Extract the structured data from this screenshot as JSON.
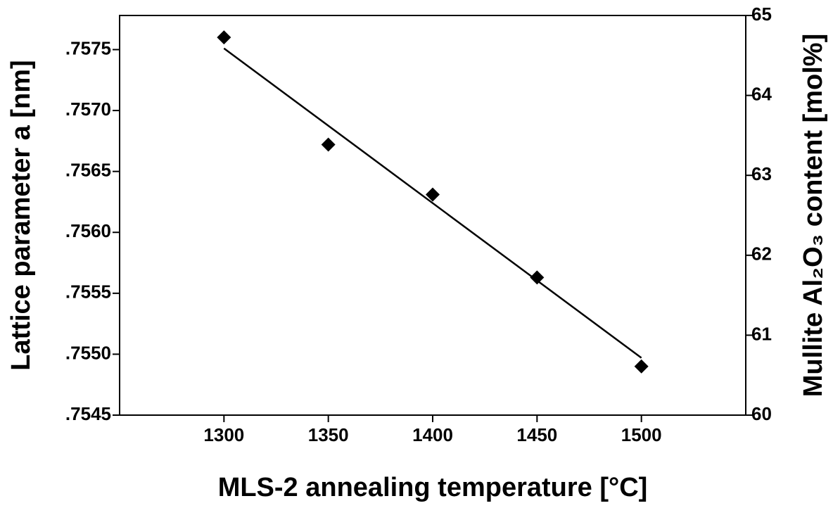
{
  "chart_data": {
    "type": "scatter",
    "x_label": "MLS-2 annealing temperature [°C]",
    "y_label": "Lattice parameter a [nm]",
    "y2_label": "Mullite Al₂O₃ content [mol%]",
    "x": [
      1300,
      1350,
      1400,
      1450,
      1500
    ],
    "values": [
      0.7576,
      0.75672,
      0.75631,
      0.75563,
      0.7549
    ],
    "color": "#000000",
    "fit": {
      "x": [
        1300,
        1500
      ],
      "values": [
        0.75751,
        0.75497
      ],
      "color": "#000000"
    },
    "xlim": [
      1250,
      1550
    ],
    "xticks": [
      1300,
      1350,
      1400,
      1450,
      1500
    ],
    "ylim": [
      0.7545,
      0.75778
    ],
    "yticks": [
      {
        "value": 0.7545,
        "label": ".7545"
      },
      {
        "value": 0.755,
        "label": ".7550"
      },
      {
        "value": 0.7555,
        "label": ".7555"
      },
      {
        "value": 0.756,
        "label": ".7560"
      },
      {
        "value": 0.7565,
        "label": ".7565"
      },
      {
        "value": 0.757,
        "label": ".7570"
      },
      {
        "value": 0.7575,
        "label": ".7575"
      }
    ],
    "y2lim": [
      60,
      65
    ],
    "y2ticks": [
      60,
      61,
      62,
      63,
      64,
      65
    ]
  }
}
